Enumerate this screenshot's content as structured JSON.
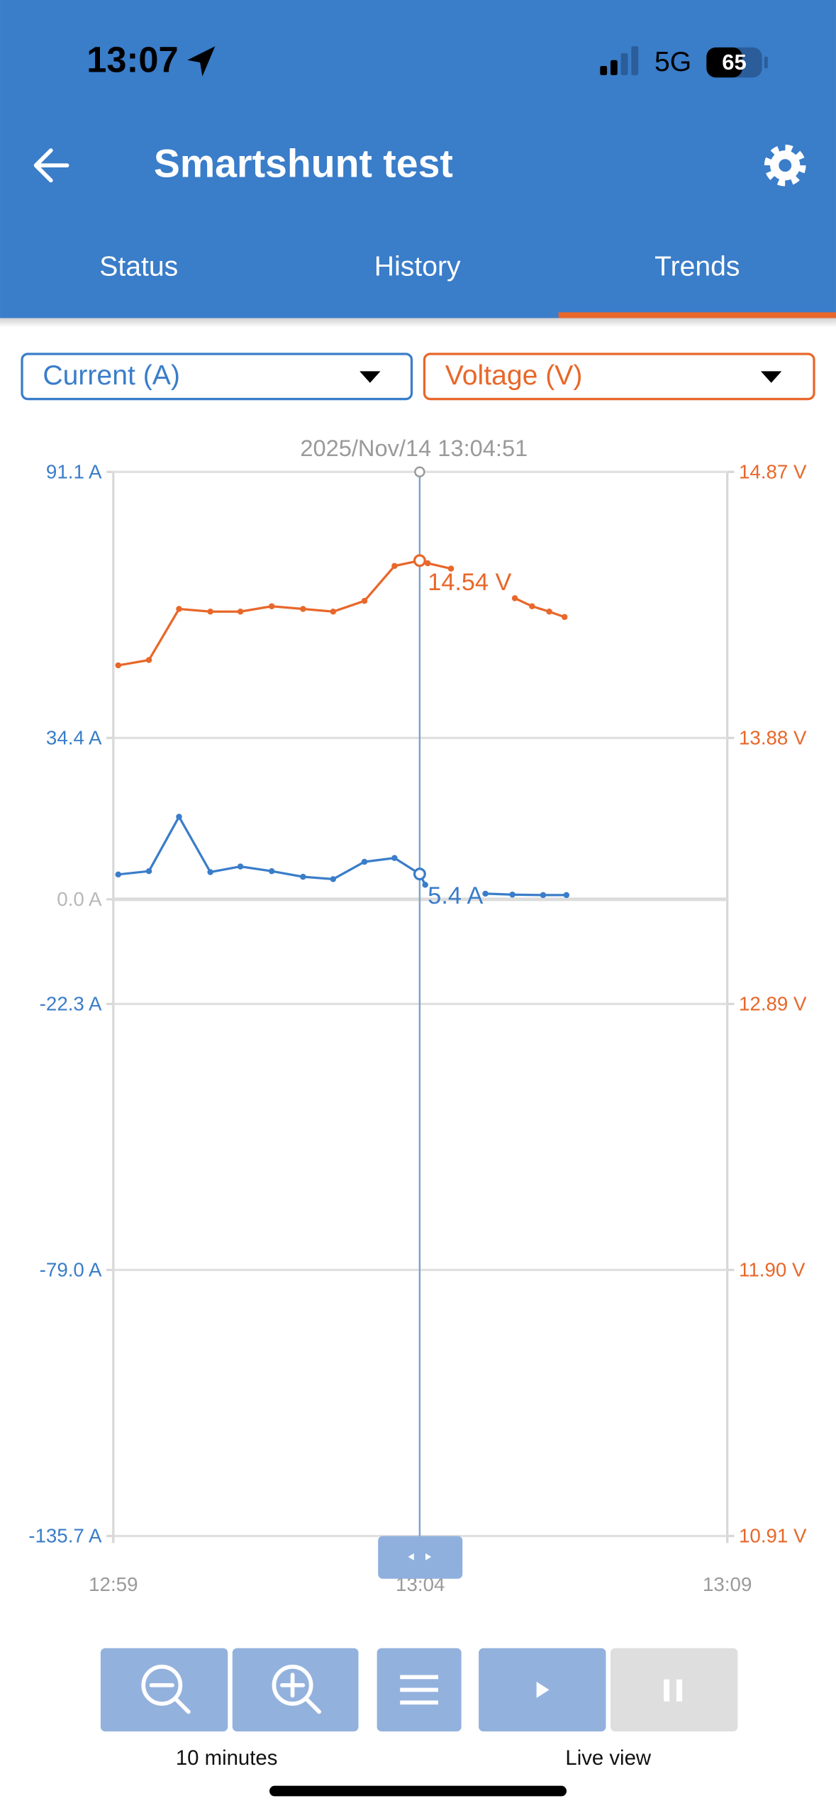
{
  "status_bar": {
    "time": "13:07",
    "network": "5G",
    "battery": "65"
  },
  "header": {
    "title": "Smartshunt test"
  },
  "tabs": [
    "Status",
    "History",
    "Trends"
  ],
  "chart_data": {
    "type": "line",
    "cursor_label": "2025/Nov/14 13:04:51",
    "xlim": [
      59,
      69
    ],
    "xticks": [
      {
        "value": 59,
        "label": "12:59"
      },
      {
        "value": 64,
        "label": "13:04"
      },
      {
        "value": 69,
        "label": "13:09"
      }
    ],
    "ylim": [
      -135.7,
      91.1
    ],
    "yticks": [
      {
        "value": 91.1,
        "label": "91.1 A"
      },
      {
        "value": 34.4,
        "label": "34.4 A"
      },
      {
        "value": 0,
        "label": "0.0 A"
      },
      {
        "value": -22.3,
        "label": "-22.3 A"
      },
      {
        "value": -79.0,
        "label": "-79.0 A"
      },
      {
        "value": -135.7,
        "label": "-135.7 A"
      }
    ],
    "y2lim": [
      10.91,
      14.87
    ],
    "y2ticks": [
      {
        "value": 14.87,
        "label": "14.87 V"
      },
      {
        "value": 13.88,
        "label": "13.88 V"
      },
      {
        "value": 12.89,
        "label": "12.89 V"
      },
      {
        "value": 11.9,
        "label": "11.90 V"
      },
      {
        "value": 10.91,
        "label": "10.91 V"
      }
    ],
    "grid": true,
    "series": [
      {
        "name": "Current (A)",
        "color": "#3a7dc9",
        "x": [
          59.08,
          59.58,
          60.07,
          60.58,
          61.07,
          61.58,
          62.09,
          62.58,
          63.09,
          63.58,
          63.99,
          64.08,
          null,
          65.06,
          65.5,
          66.0,
          66.38
        ],
        "values": [
          5.3,
          6.0,
          17.6,
          5.8,
          7.0,
          6.0,
          4.8,
          4.3,
          8.0,
          8.8,
          5.4,
          3.1,
          null,
          1.2,
          1.0,
          0.9,
          0.9
        ],
        "value_labels": [
          null,
          null,
          null,
          null,
          null,
          null,
          null,
          null,
          null,
          null,
          "5.4 A",
          null,
          null,
          null,
          null,
          null,
          null
        ]
      },
      {
        "name": "Voltage (V)",
        "color": "#e8672a",
        "axis": "y2",
        "x": [
          59.08,
          59.58,
          60.07,
          60.58,
          61.07,
          61.58,
          62.09,
          62.58,
          63.09,
          63.58,
          63.99,
          64.12,
          64.5,
          null,
          65.54,
          65.82,
          66.1,
          66.35
        ],
        "values": [
          14.15,
          14.17,
          14.36,
          14.35,
          14.35,
          14.37,
          14.36,
          14.35,
          14.39,
          14.52,
          14.54,
          14.53,
          14.51,
          null,
          14.4,
          14.37,
          14.35,
          14.33
        ],
        "value_labels": [
          null,
          null,
          null,
          null,
          null,
          null,
          null,
          null,
          null,
          null,
          "14.54 V",
          null,
          null,
          null,
          null,
          null,
          null,
          null
        ]
      }
    ]
  },
  "controls": {
    "zoom_label": "10 minutes",
    "live_label": "Live view"
  }
}
